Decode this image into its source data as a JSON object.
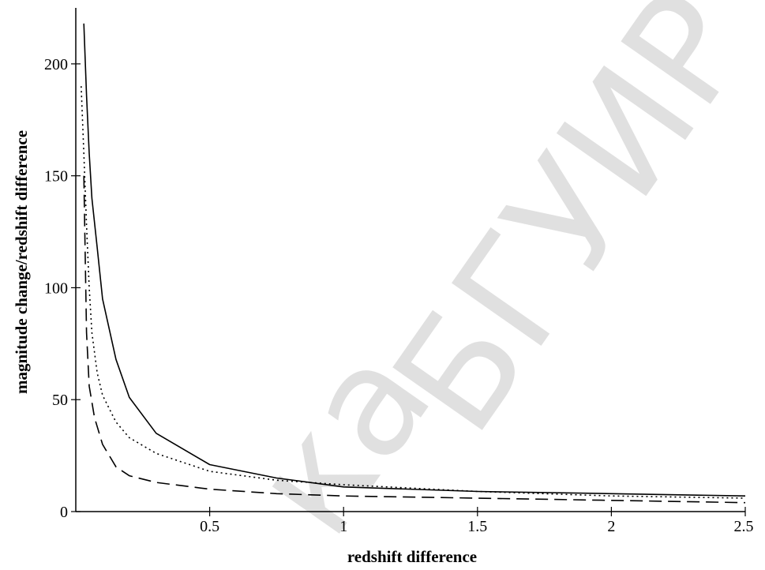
{
  "chart_data": {
    "type": "line",
    "title": "",
    "xlabel": "redshift difference",
    "ylabel": "magnitude change/redshift difference",
    "xlim": [
      0,
      2.5
    ],
    "ylim": [
      0,
      225
    ],
    "x_ticks": [
      "0.5",
      "1",
      "1.5",
      "2",
      "2.5"
    ],
    "y_ticks": [
      "0",
      "50",
      "100",
      "150",
      "200"
    ],
    "grid": false,
    "legend": "none",
    "series": [
      {
        "style": "solid",
        "x": [
          0.03,
          0.04,
          0.05,
          0.06,
          0.08,
          0.1,
          0.15,
          0.2,
          0.3,
          0.5,
          0.75,
          1.0,
          1.5,
          2.0,
          2.5
        ],
        "values": [
          218,
          186,
          160,
          140,
          118,
          95,
          68,
          51,
          35,
          21,
          15,
          11,
          9,
          8,
          7
        ]
      },
      {
        "style": "dotted",
        "x": [
          0.02,
          0.03,
          0.04,
          0.05,
          0.06,
          0.08,
          0.1,
          0.15,
          0.2,
          0.3,
          0.5,
          0.75,
          1.0,
          1.5,
          2.0,
          2.5
        ],
        "values": [
          190,
          160,
          128,
          100,
          80,
          62,
          52,
          40,
          33,
          26,
          18,
          14,
          12,
          9,
          7,
          6
        ]
      },
      {
        "style": "dashed",
        "x": [
          0.03,
          0.04,
          0.05,
          0.07,
          0.1,
          0.15,
          0.2,
          0.3,
          0.5,
          0.75,
          1.0,
          1.5,
          2.0,
          2.5
        ],
        "values": [
          150,
          80,
          56,
          42,
          30,
          20,
          16,
          13,
          10,
          8,
          7,
          6,
          5,
          4
        ]
      }
    ]
  },
  "watermark": {
    "text": "БГУИР",
    "text2": "ка"
  }
}
